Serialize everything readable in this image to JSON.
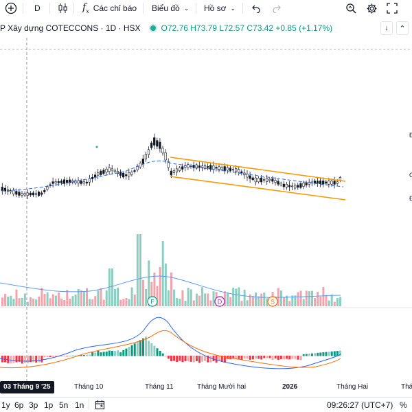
{
  "toolbar": {
    "add_icon": "plus-circle-icon",
    "interval": "D",
    "chart_type_icon": "candles-icon",
    "indicators_label": "Các chỉ báo",
    "chart_menu_label": "Biểu đồ",
    "profile_label": "Hồ sơ"
  },
  "legend": {
    "title": "P Xây dựng COTECCONS · 1D · HSX",
    "open": "O72.76",
    "high": "H73.79",
    "low": "L72.57",
    "close": "C73.42",
    "change": "+0.85 (+1.17%)"
  },
  "price_axis_labels": [
    "Đ",
    "C",
    "Đ"
  ],
  "events": [
    "F",
    "D",
    "S"
  ],
  "time_axis": {
    "crosshair_label": "03 Tháng 9 '25",
    "labels": [
      "Tháng 10",
      "Tháng 11",
      "Tháng Mười hai",
      "2026",
      "Tháng Hai",
      "Tháng"
    ]
  },
  "bottom": {
    "ranges": [
      "1y",
      "6p",
      "3p",
      "1p",
      "5n",
      "1n"
    ],
    "time": "09:26:27 (UTC+7)",
    "percent": "%"
  },
  "colors": {
    "up": "#089981",
    "down": "#f23645",
    "volume_up": "#8ccfc0",
    "volume_down": "#f3a3ab",
    "channel": "#ff9800",
    "ma": "#2962ff"
  },
  "chart_data": {
    "type": "candlestick",
    "volume_color_rule": "up/down",
    "channel_lines": 2,
    "indicators": [
      "volume",
      "moving average",
      "MACD histogram",
      "MACD line",
      "signal line"
    ]
  }
}
